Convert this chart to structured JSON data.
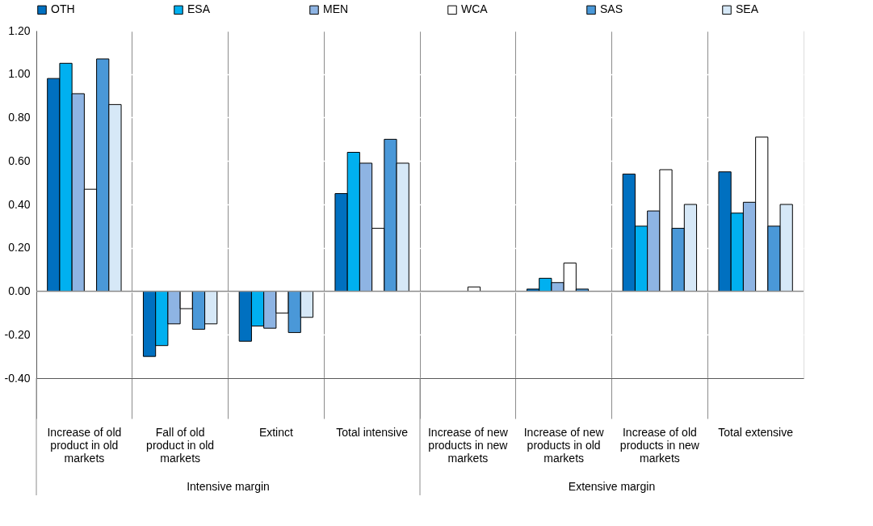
{
  "chart_data": {
    "type": "bar",
    "categories": [
      "Increase of old product in old markets",
      "Fall of old product in old markets",
      "Extinct",
      "Total intensive",
      "Increase of new products in new markets",
      "Increase of new products in old markets",
      "Increase of old products in new markets",
      "Total extensive"
    ],
    "series": [
      {
        "name": "OTH",
        "color": "#0070c0",
        "values": [
          0.98,
          -0.3,
          -0.23,
          0.45,
          null,
          0.01,
          0.54,
          0.55
        ]
      },
      {
        "name": "ESA",
        "color": "#00b0f0",
        "values": [
          1.05,
          -0.25,
          -0.16,
          0.64,
          null,
          0.06,
          0.3,
          0.36
        ]
      },
      {
        "name": "MEN",
        "color": "#8eb4e3",
        "values": [
          0.91,
          -0.15,
          -0.17,
          0.59,
          null,
          0.04,
          0.37,
          0.41
        ]
      },
      {
        "name": "WCA",
        "color": "#ffffff",
        "values": [
          0.47,
          -0.08,
          -0.1,
          0.29,
          0.02,
          0.13,
          0.56,
          0.71
        ]
      },
      {
        "name": "SAS",
        "color": "#4a98d8",
        "values": [
          1.07,
          -0.175,
          -0.19,
          0.7,
          null,
          0.01,
          0.29,
          0.3
        ]
      },
      {
        "name": "SEA",
        "color": "#d6e8f7",
        "values": [
          0.86,
          -0.15,
          -0.12,
          0.59,
          null,
          null,
          0.4,
          0.4
        ]
      }
    ],
    "ylim": [
      -0.4,
      1.2
    ],
    "yticks": [
      {
        "value": -0.4,
        "label": "-0.40"
      },
      {
        "value": -0.2,
        "label": "-0.20"
      },
      {
        "value": 0,
        "label": "0.00"
      },
      {
        "value": 0.2,
        "label": "0.20"
      },
      {
        "value": 0.4,
        "label": "0.40"
      },
      {
        "value": 0.6,
        "label": "0.60"
      },
      {
        "value": 0.8,
        "label": "0.80"
      },
      {
        "value": 1.0,
        "label": "1.00"
      },
      {
        "value": 1.2,
        "label": "1.20"
      }
    ],
    "grid": "y",
    "legend": "top",
    "annotations": [
      "Intensive margin",
      "Extensive margin"
    ]
  }
}
